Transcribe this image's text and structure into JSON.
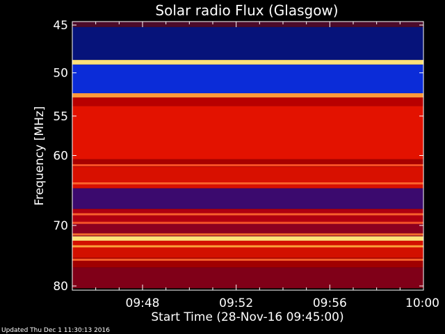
{
  "chart_data": {
    "type": "heatmap",
    "title": "Solar radio Flux (Glasgow)",
    "xlabel": "Start Time (28-Nov-16 09:45:00)",
    "ylabel": "Frequency [MHz]",
    "x_range_minutes": [
      0,
      15
    ],
    "x_ticks": [
      {
        "minute": 3,
        "label": "09:48"
      },
      {
        "minute": 7,
        "label": "09:52"
      },
      {
        "minute": 11,
        "label": "09:56"
      },
      {
        "minute": 15,
        "label": "10:00"
      }
    ],
    "y_ticks": [
      {
        "value": 45,
        "label": "45"
      },
      {
        "value": 50,
        "label": "50"
      },
      {
        "value": 55,
        "label": "55"
      },
      {
        "value": 60,
        "label": "60"
      },
      {
        "value": 70,
        "label": "70"
      },
      {
        "value": 80,
        "label": "80"
      }
    ],
    "y_scale": "log",
    "ylim": [
      45,
      80
    ],
    "bands": [
      {
        "from": 44.5,
        "to": 45.2,
        "color": "#4b0a2a"
      },
      {
        "from": 45.2,
        "to": 48.6,
        "color": "#06137a"
      },
      {
        "from": 48.6,
        "to": 49.1,
        "color": "#ffe27a"
      },
      {
        "from": 49.1,
        "to": 52.3,
        "color": "#0b2cd8"
      },
      {
        "from": 52.3,
        "to": 52.8,
        "color": "#ff9a3c"
      },
      {
        "from": 52.8,
        "to": 53.8,
        "color": "#b80000"
      },
      {
        "from": 53.8,
        "to": 60.5,
        "color": "#e31200"
      },
      {
        "from": 60.5,
        "to": 61.5,
        "color": "#a80000"
      },
      {
        "from": 61.5,
        "to": 64.5,
        "color": "#d81000"
      },
      {
        "from": 64.5,
        "to": 67.5,
        "color": "#3b0a6e"
      },
      {
        "from": 67.5,
        "to": 69.5,
        "color": "#b00010"
      },
      {
        "from": 69.5,
        "to": 71.7,
        "color": "#8c0020"
      },
      {
        "from": 71.7,
        "to": 72.4,
        "color": "#ffe27a"
      },
      {
        "from": 72.4,
        "to": 75.2,
        "color": "#d21000"
      },
      {
        "from": 75.2,
        "to": 76.8,
        "color": "#a00000"
      },
      {
        "from": 76.8,
        "to": 80.4,
        "color": "#800018"
      }
    ],
    "stripes": [
      {
        "freq": 61.3,
        "color": "#ff5a2a"
      },
      {
        "freq": 63.8,
        "color": "#ff6a30"
      },
      {
        "freq": 68.3,
        "color": "#ff6a30"
      },
      {
        "freq": 69.6,
        "color": "#ff5a2a"
      },
      {
        "freq": 71.4,
        "color": "#ff7a30"
      },
      {
        "freq": 73.3,
        "color": "#ffb040"
      },
      {
        "freq": 75.5,
        "color": "#ff6a30"
      }
    ],
    "footer": "Updated Thu Dec  1 11:30:13 2016"
  }
}
